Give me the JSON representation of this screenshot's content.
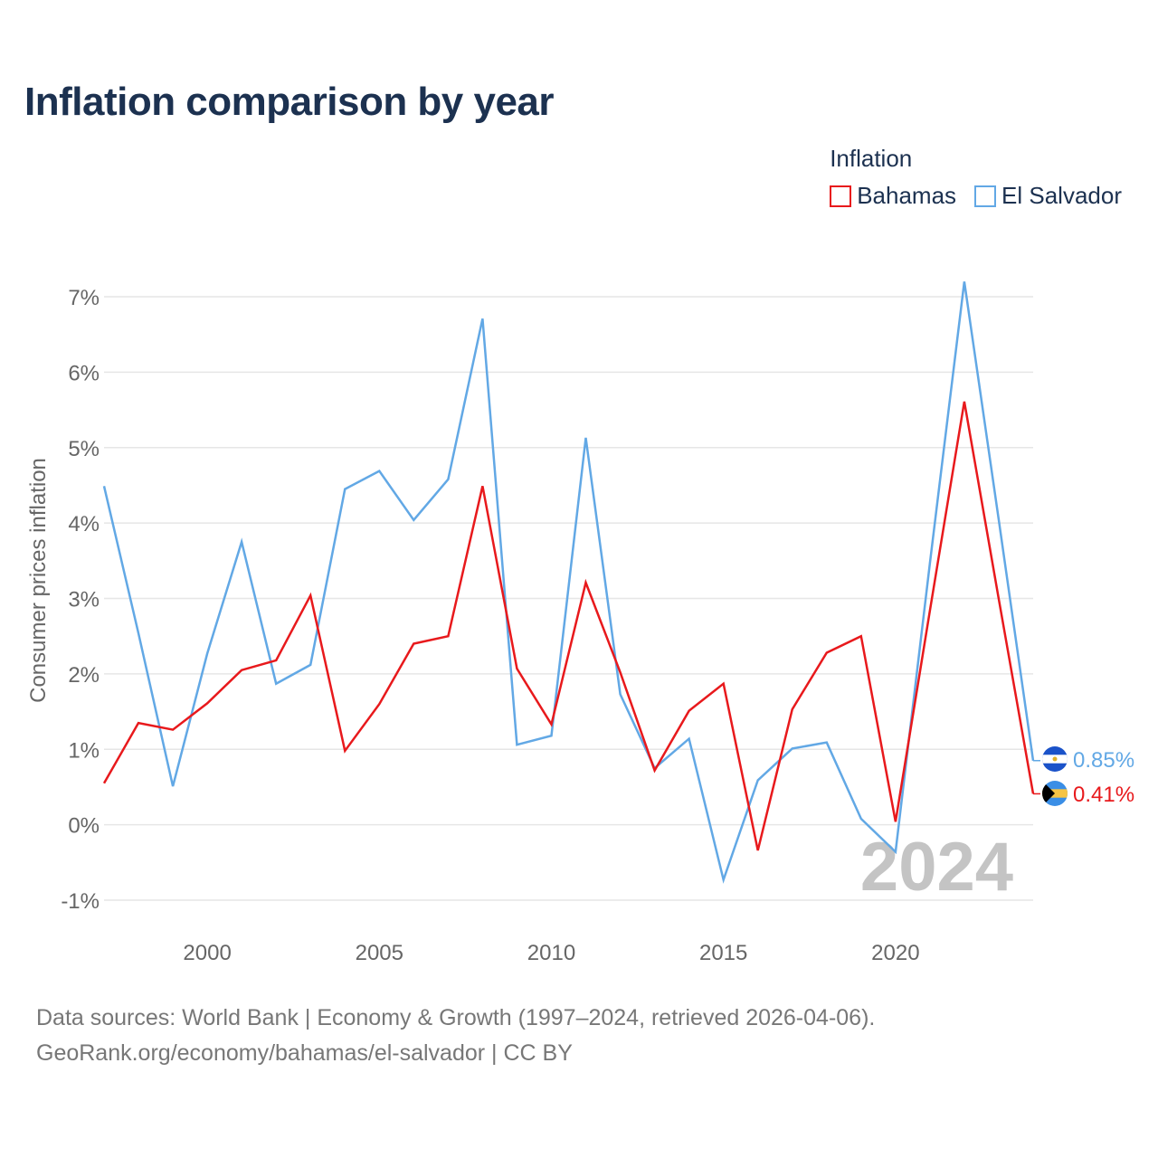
{
  "title": "Inflation comparison by year",
  "legend": {
    "title": "Inflation",
    "items": [
      {
        "label": "Bahamas",
        "color": "#e8191c"
      },
      {
        "label": "El Salvador",
        "color": "#62a8e5"
      }
    ]
  },
  "footer": {
    "line1": "Data sources: World Bank | Economy & Growth (1997–2024, retrieved 2026-04-06).",
    "line2": "GeoRank.org/economy/bahamas/el-salvador | CC BY"
  },
  "chart_data": {
    "type": "line",
    "title": "Inflation comparison by year",
    "xlabel": "",
    "ylabel": "Consumer prices inflation",
    "x": [
      1997,
      1998,
      1999,
      2000,
      2001,
      2002,
      2003,
      2004,
      2005,
      2006,
      2007,
      2008,
      2009,
      2010,
      2011,
      2012,
      2013,
      2014,
      2015,
      2016,
      2017,
      2018,
      2019,
      2020,
      2021,
      2022,
      2023,
      2024
    ],
    "xlim": [
      1997,
      2024
    ],
    "ylim": [
      -1,
      7
    ],
    "x_ticks": [
      2000,
      2005,
      2010,
      2015,
      2020
    ],
    "y_ticks": [
      -1,
      0,
      1,
      2,
      3,
      4,
      5,
      6,
      7
    ],
    "y_tick_labels": [
      "-1%",
      "0%",
      "1%",
      "2%",
      "3%",
      "4%",
      "5%",
      "6%",
      "7%"
    ],
    "grid": true,
    "legend_position": "top-right",
    "watermark_year": "2024",
    "series": [
      {
        "name": "Bahamas",
        "color": "#e8191c",
        "values": [
          0.55,
          1.35,
          1.26,
          1.61,
          2.05,
          2.18,
          3.04,
          0.98,
          1.6,
          2.4,
          2.5,
          4.49,
          2.07,
          1.33,
          3.21,
          2.02,
          0.72,
          1.51,
          1.87,
          -0.34,
          1.53,
          2.28,
          2.5,
          0.04,
          2.84,
          5.61,
          2.99,
          0.41
        ],
        "end_label": "0.41%"
      },
      {
        "name": "El Salvador",
        "color": "#62a8e5",
        "values": [
          4.49,
          2.54,
          0.51,
          2.27,
          3.75,
          1.87,
          2.12,
          4.45,
          4.69,
          4.04,
          4.58,
          6.71,
          1.06,
          1.18,
          5.13,
          1.73,
          0.75,
          1.14,
          -0.73,
          0.59,
          1.01,
          1.09,
          0.08,
          -0.36,
          3.47,
          7.2,
          4.04,
          0.85
        ],
        "end_label": "0.85%"
      }
    ]
  }
}
